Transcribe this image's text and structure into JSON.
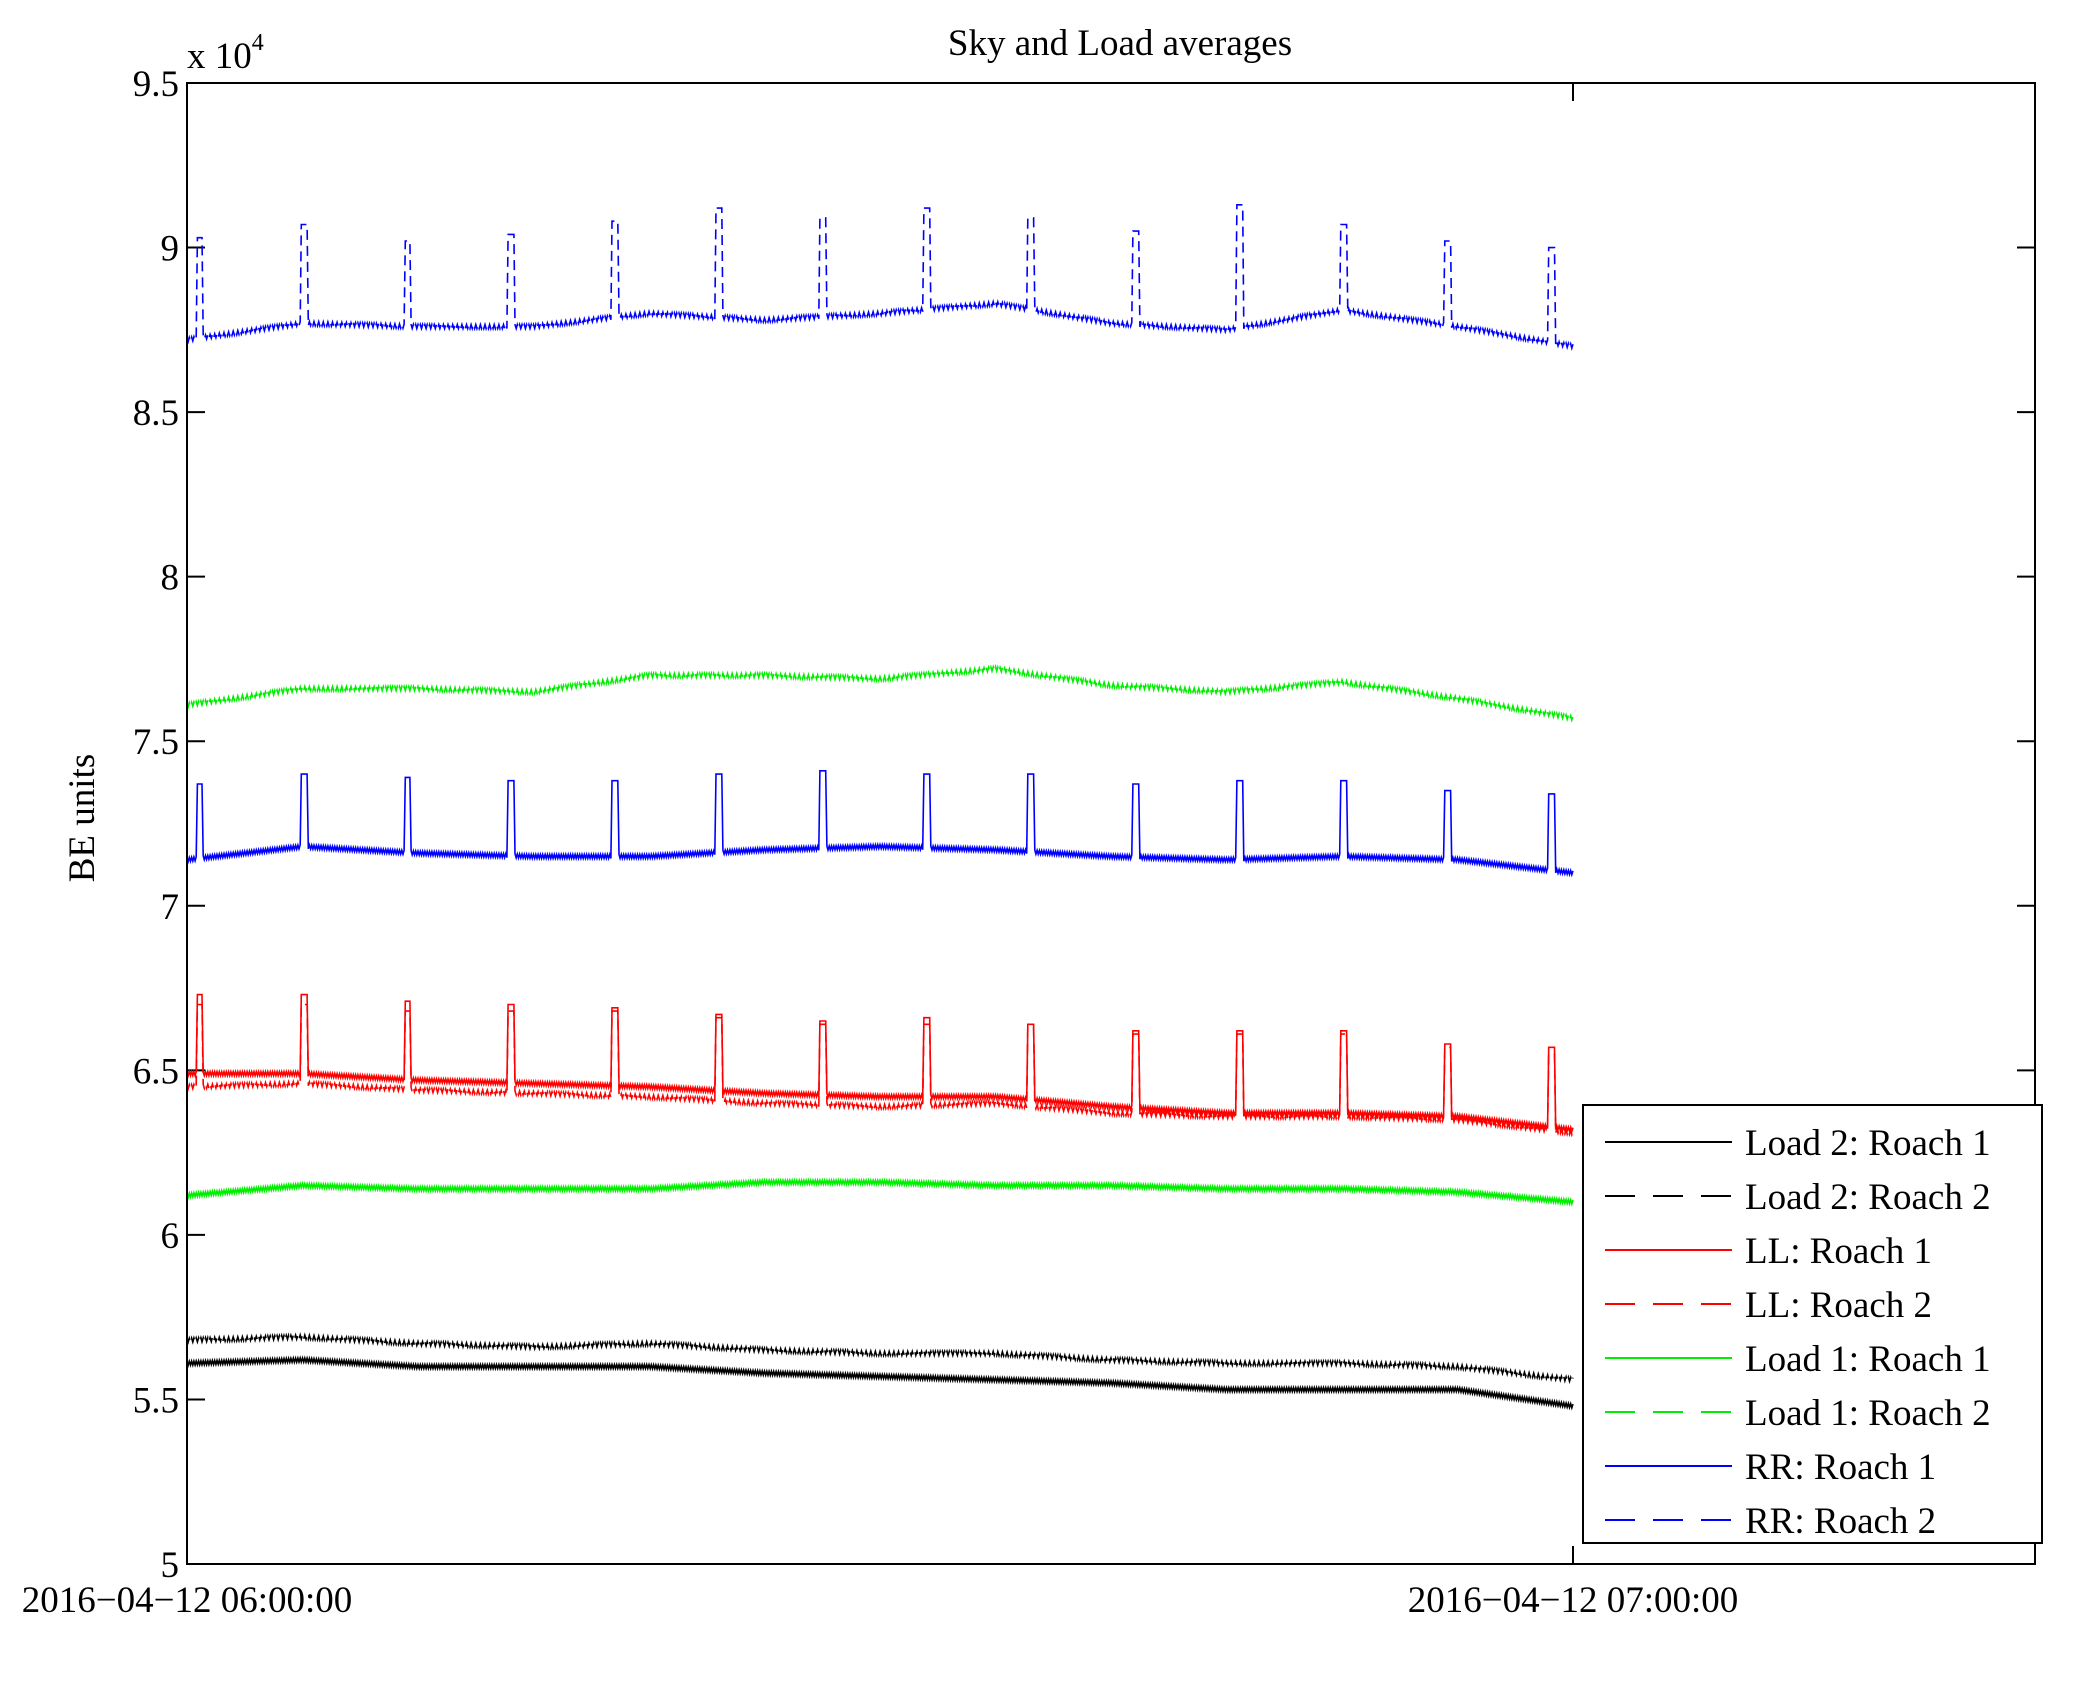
{
  "chart_data": {
    "type": "line",
    "title": "Sky and Load averages",
    "xlabel": "",
    "ylabel": "BE units",
    "y_multiplier": "x 10",
    "y_multiplier_exponent": "4",
    "xlim_minutes": [
      0,
      80
    ],
    "ylim": [
      5.0,
      9.5
    ],
    "x_ticks": [
      {
        "value": 0,
        "label": "2016−04−12 06:00:00"
      },
      {
        "value": 60,
        "label": "2016−04−12 07:00:00"
      }
    ],
    "y_ticks": [
      {
        "value": 5.0,
        "label": "5"
      },
      {
        "value": 5.5,
        "label": "5.5"
      },
      {
        "value": 6.0,
        "label": "6"
      },
      {
        "value": 6.5,
        "label": "6.5"
      },
      {
        "value": 7.0,
        "label": "7"
      },
      {
        "value": 7.5,
        "label": "7.5"
      },
      {
        "value": 8.0,
        "label": "8"
      },
      {
        "value": 8.5,
        "label": "8.5"
      },
      {
        "value": 9.0,
        "label": "9"
      },
      {
        "value": 9.5,
        "label": "9.5"
      }
    ],
    "legend_position": "bottom-right",
    "x_minutes": [
      0,
      5,
      10,
      15,
      20,
      25,
      30,
      35,
      40,
      45,
      50,
      55,
      60
    ],
    "spike_minutes": [
      0.4,
      4.9,
      9.4,
      13.9,
      18.4,
      22.9,
      27.4,
      31.9,
      36.4,
      40.9,
      45.4,
      49.9,
      54.4,
      58.9
    ],
    "series": [
      {
        "name": "Load 2: Roach 1",
        "color": "#000000",
        "dash": "solid",
        "values": [
          5.61,
          5.62,
          5.6,
          5.6,
          5.6,
          5.58,
          5.57,
          5.56,
          5.55,
          5.53,
          5.53,
          5.53,
          5.48
        ],
        "spike_values": []
      },
      {
        "name": "Load 2: Roach 2",
        "color": "#000000",
        "dash": "dashed",
        "values": [
          5.68,
          5.69,
          5.67,
          5.66,
          5.67,
          5.65,
          5.64,
          5.64,
          5.62,
          5.61,
          5.61,
          5.6,
          5.56
        ],
        "spike_values": []
      },
      {
        "name": "LL: Roach 1",
        "color": "#ff0000",
        "dash": "solid",
        "values": [
          6.49,
          6.49,
          6.47,
          6.46,
          6.45,
          6.43,
          6.42,
          6.42,
          6.39,
          6.37,
          6.37,
          6.36,
          6.32
        ],
        "spike_values": [
          6.73,
          6.73,
          6.71,
          6.7,
          6.69,
          6.67,
          6.65,
          6.66,
          6.64,
          6.62,
          6.62,
          6.62,
          6.58,
          6.57
        ]
      },
      {
        "name": "LL: Roach 2",
        "color": "#ff0000",
        "dash": "dashed",
        "values": [
          6.45,
          6.46,
          6.44,
          6.43,
          6.42,
          6.4,
          6.39,
          6.4,
          6.37,
          6.36,
          6.36,
          6.35,
          6.31
        ],
        "spike_values": [
          6.7,
          6.7,
          6.68,
          6.68,
          6.68,
          6.66,
          6.64,
          6.64,
          6.63,
          6.61,
          6.61,
          6.61,
          6.57,
          6.55
        ]
      },
      {
        "name": "Load 1: Roach 1",
        "color": "#00ee00",
        "dash": "solid",
        "values": [
          6.12,
          6.15,
          6.14,
          6.14,
          6.14,
          6.16,
          6.16,
          6.15,
          6.15,
          6.14,
          6.14,
          6.13,
          6.1
        ],
        "spike_values": []
      },
      {
        "name": "Load 1: Roach 2",
        "color": "#00ee00",
        "dash": "dashed",
        "values": [
          7.61,
          7.66,
          7.66,
          7.65,
          7.7,
          7.7,
          7.69,
          7.72,
          7.67,
          7.65,
          7.68,
          7.63,
          7.57
        ],
        "spike_values": []
      },
      {
        "name": "RR: Roach 1",
        "color": "#0000ff",
        "dash": "solid",
        "values": [
          7.14,
          7.18,
          7.16,
          7.15,
          7.15,
          7.17,
          7.18,
          7.17,
          7.15,
          7.14,
          7.15,
          7.14,
          7.1
        ],
        "spike_values": [
          7.37,
          7.4,
          7.39,
          7.38,
          7.38,
          7.4,
          7.41,
          7.4,
          7.4,
          7.37,
          7.38,
          7.38,
          7.35,
          7.34
        ]
      },
      {
        "name": "RR: Roach 2",
        "color": "#0000ff",
        "dash": "dashed",
        "values": [
          8.72,
          8.77,
          8.76,
          8.76,
          8.8,
          8.78,
          8.8,
          8.83,
          8.77,
          8.75,
          8.81,
          8.76,
          8.7
        ],
        "spike_values": [
          9.03,
          9.07,
          9.02,
          9.04,
          9.08,
          9.12,
          9.09,
          9.12,
          9.09,
          9.05,
          9.13,
          9.07,
          9.02,
          9.0
        ]
      }
    ]
  }
}
